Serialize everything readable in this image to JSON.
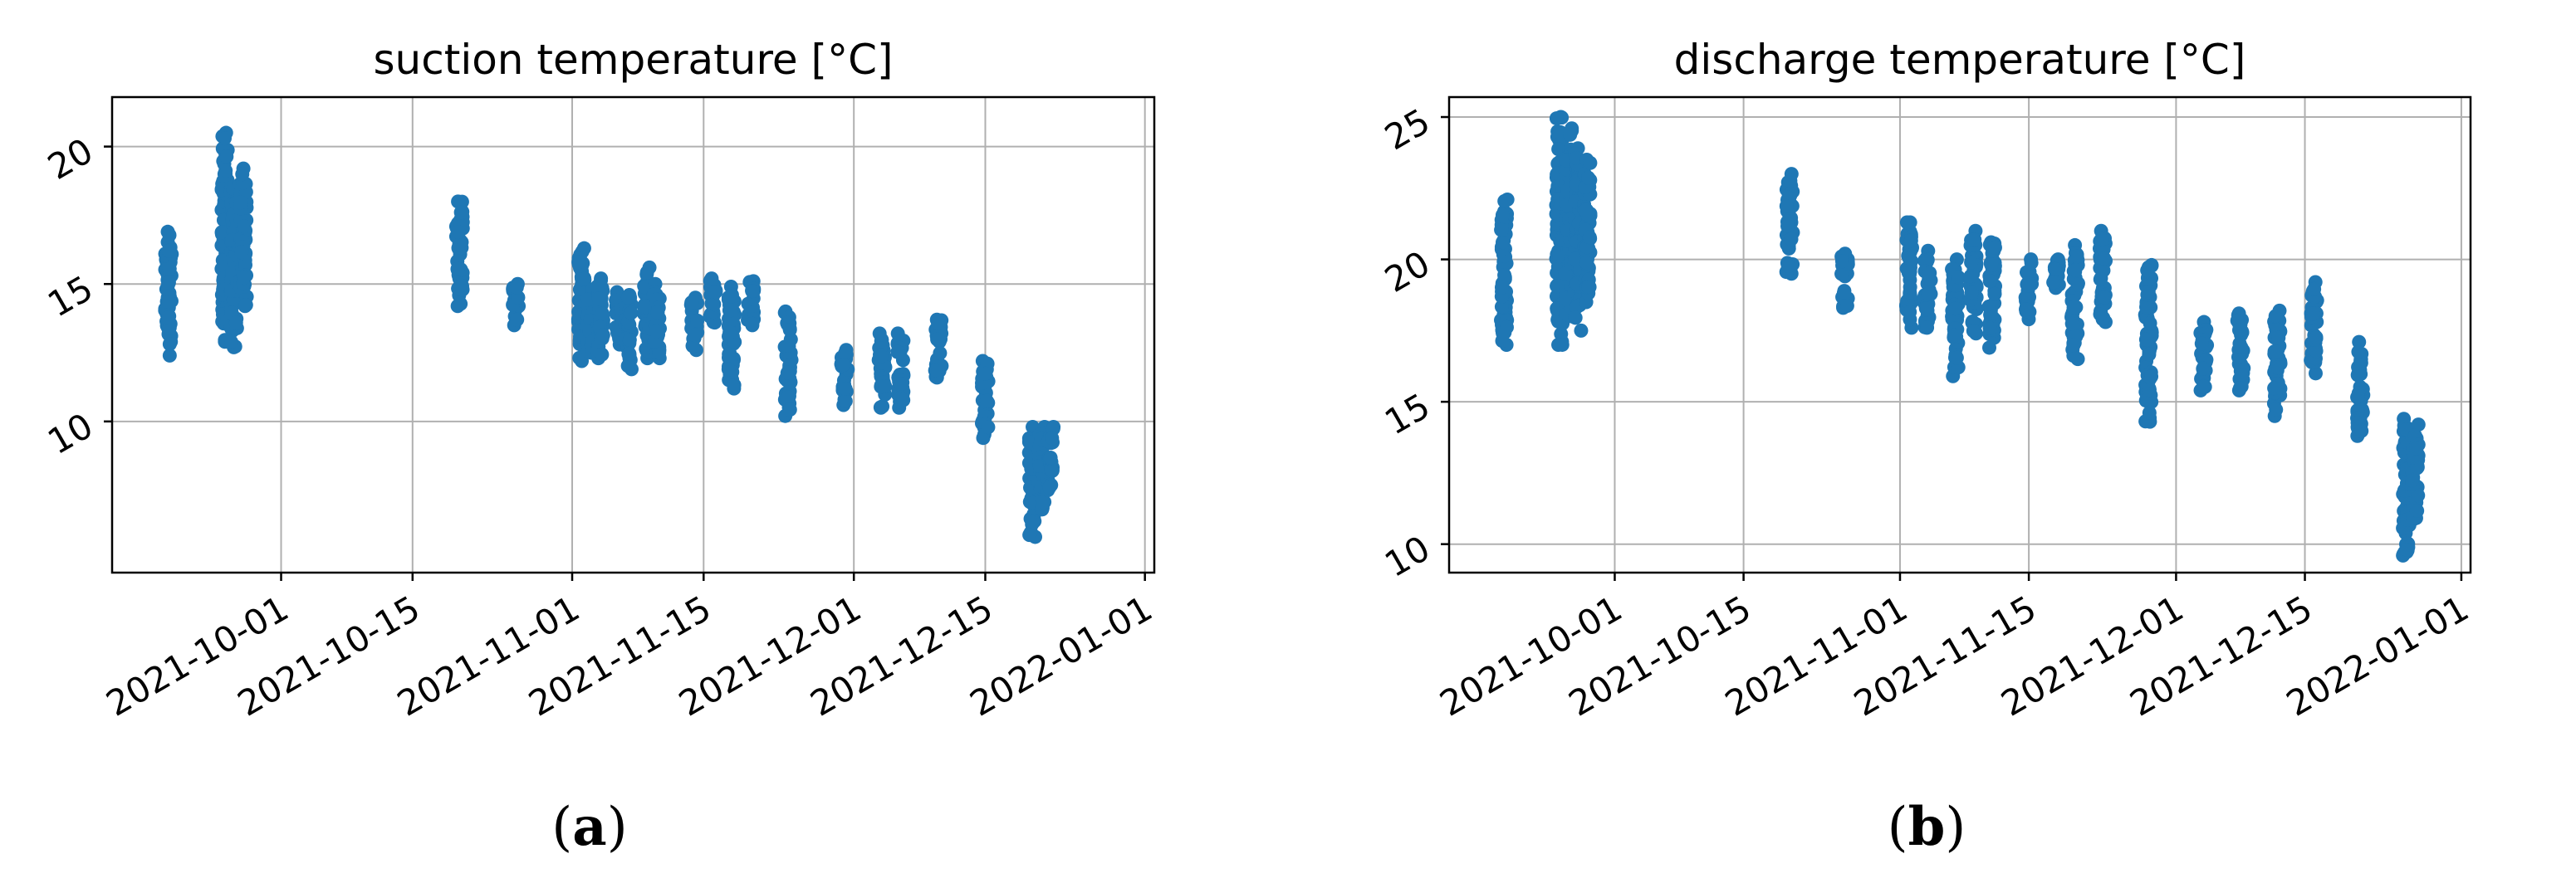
{
  "figure": {
    "panel_a_label": "(a)",
    "panel_b_label": "(b)"
  },
  "chart_data": [
    {
      "type": "scatter",
      "title": "suction temperature [°C]",
      "xlabel": "",
      "ylabel": "",
      "x_type": "date",
      "xlim": [
        "2021-09-13",
        "2022-01-02"
      ],
      "ylim": [
        4.5,
        21.8
      ],
      "x_ticks": [
        "2021-10-01",
        "2021-10-15",
        "2021-11-01",
        "2021-11-15",
        "2021-12-01",
        "2021-12-15",
        "2022-01-01"
      ],
      "y_ticks": [
        10,
        15,
        20
      ],
      "grid": true,
      "color": "#1f77b4",
      "clusters": [
        {
          "date": "2021-09-19",
          "min": 12.4,
          "max": 16.9
        },
        {
          "date": "2021-09-25",
          "min": 12.9,
          "max": 20.5
        },
        {
          "date": "2021-09-26",
          "min": 12.7,
          "max": 18.5
        },
        {
          "date": "2021-09-27",
          "min": 14.2,
          "max": 19.2
        },
        {
          "date": "2021-10-20",
          "min": 14.2,
          "max": 18.0
        },
        {
          "date": "2021-10-26",
          "min": 13.5,
          "max": 15.0
        },
        {
          "date": "2021-11-02",
          "min": 12.2,
          "max": 16.3
        },
        {
          "date": "2021-11-03",
          "min": 12.5,
          "max": 14.8
        },
        {
          "date": "2021-11-04",
          "min": 12.3,
          "max": 15.2
        },
        {
          "date": "2021-11-06",
          "min": 12.8,
          "max": 14.7
        },
        {
          "date": "2021-11-07",
          "min": 11.9,
          "max": 14.6
        },
        {
          "date": "2021-11-09",
          "min": 12.3,
          "max": 15.6
        },
        {
          "date": "2021-11-10",
          "min": 12.3,
          "max": 15.0
        },
        {
          "date": "2021-11-14",
          "min": 12.6,
          "max": 14.5
        },
        {
          "date": "2021-11-16",
          "min": 13.6,
          "max": 15.2
        },
        {
          "date": "2021-11-18",
          "min": 11.2,
          "max": 14.9
        },
        {
          "date": "2021-11-20",
          "min": 13.5,
          "max": 15.1
        },
        {
          "date": "2021-11-24",
          "min": 10.2,
          "max": 14.0
        },
        {
          "date": "2021-11-30",
          "min": 10.6,
          "max": 12.6
        },
        {
          "date": "2021-12-04",
          "min": 10.5,
          "max": 13.2
        },
        {
          "date": "2021-12-06",
          "min": 10.5,
          "max": 13.2
        },
        {
          "date": "2021-12-10",
          "min": 11.6,
          "max": 13.7
        },
        {
          "date": "2021-12-15",
          "min": 9.4,
          "max": 12.2
        },
        {
          "date": "2021-12-20",
          "min": 5.8,
          "max": 9.8
        },
        {
          "date": "2021-12-21",
          "min": 6.8,
          "max": 9.8
        },
        {
          "date": "2021-12-22",
          "min": 7.5,
          "max": 9.8
        }
      ]
    },
    {
      "type": "scatter",
      "title": "discharge temperature [°C]",
      "xlabel": "",
      "ylabel": "",
      "x_type": "date",
      "xlim": [
        "2021-09-13",
        "2022-01-02"
      ],
      "ylim": [
        9.0,
        25.7
      ],
      "x_ticks": [
        "2021-10-01",
        "2021-10-15",
        "2021-11-01",
        "2021-11-15",
        "2021-12-01",
        "2021-12-15",
        "2022-01-01"
      ],
      "y_ticks": [
        10,
        15,
        20,
        25
      ],
      "grid": true,
      "color": "#1f77b4",
      "clusters": [
        {
          "date": "2021-09-19",
          "min": 17.0,
          "max": 22.1
        },
        {
          "date": "2021-09-25",
          "min": 17.0,
          "max": 25.0
        },
        {
          "date": "2021-09-26",
          "min": 18.0,
          "max": 24.6
        },
        {
          "date": "2021-09-27",
          "min": 17.5,
          "max": 23.9
        },
        {
          "date": "2021-09-28",
          "min": 18.5,
          "max": 23.5
        },
        {
          "date": "2021-10-20",
          "min": 19.5,
          "max": 23.0
        },
        {
          "date": "2021-10-26",
          "min": 18.3,
          "max": 20.2
        },
        {
          "date": "2021-11-02",
          "min": 17.6,
          "max": 21.3
        },
        {
          "date": "2021-11-04",
          "min": 17.6,
          "max": 20.3
        },
        {
          "date": "2021-11-07",
          "min": 15.9,
          "max": 20.0
        },
        {
          "date": "2021-11-09",
          "min": 17.4,
          "max": 21.0
        },
        {
          "date": "2021-11-11",
          "min": 16.9,
          "max": 20.6
        },
        {
          "date": "2021-11-15",
          "min": 17.9,
          "max": 20.0
        },
        {
          "date": "2021-11-18",
          "min": 19.0,
          "max": 20.0
        },
        {
          "date": "2021-11-20",
          "min": 16.5,
          "max": 20.5
        },
        {
          "date": "2021-11-23",
          "min": 17.8,
          "max": 21.0
        },
        {
          "date": "2021-11-28",
          "min": 14.3,
          "max": 19.8
        },
        {
          "date": "2021-12-04",
          "min": 15.4,
          "max": 17.8
        },
        {
          "date": "2021-12-08",
          "min": 15.4,
          "max": 18.1
        },
        {
          "date": "2021-12-12",
          "min": 14.5,
          "max": 18.2
        },
        {
          "date": "2021-12-16",
          "min": 16.0,
          "max": 19.2
        },
        {
          "date": "2021-12-21",
          "min": 13.8,
          "max": 17.1
        },
        {
          "date": "2021-12-26",
          "min": 9.6,
          "max": 14.4
        },
        {
          "date": "2021-12-27",
          "min": 10.9,
          "max": 14.2
        }
      ]
    }
  ]
}
